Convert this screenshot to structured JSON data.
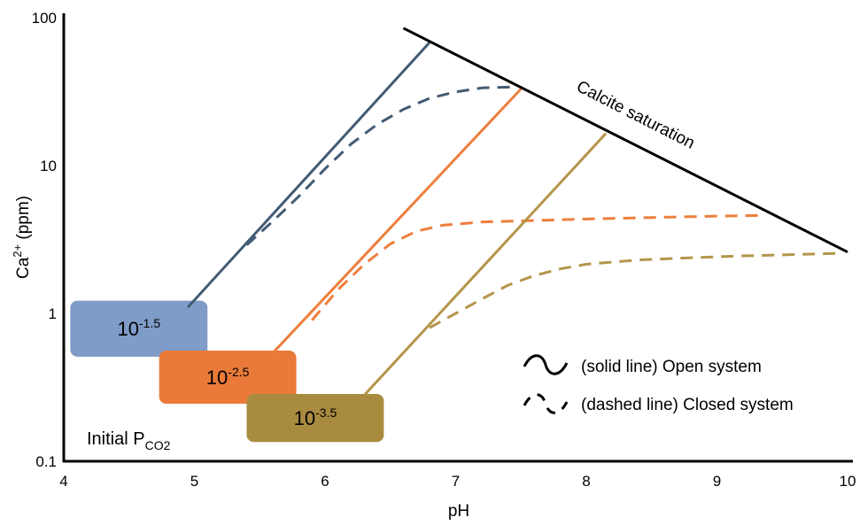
{
  "chart_data": {
    "type": "line",
    "xlabel": "pH",
    "ylabel": {
      "base": "Ca",
      "sup": "2+",
      "rest": " (ppm)"
    },
    "xlim": [
      4,
      10
    ],
    "ylim": [
      0.1,
      100
    ],
    "y_scale": "log",
    "x_ticks": [
      "4",
      "5",
      "6",
      "7",
      "8",
      "9",
      "10"
    ],
    "y_ticks": [
      "0.1",
      "1",
      "10",
      "100"
    ],
    "grid": false,
    "colors": {
      "blue": "#435B74",
      "orange": "#EE7E3C",
      "olive": "#B5954B",
      "blue_box": "#7F9BC7",
      "orange_box": "#E97A3A",
      "olive_box": "#A98B3F",
      "saturation": "#000000"
    },
    "saturation_line": {
      "label": "Calcite saturation",
      "points": [
        [
          6.6,
          85
        ],
        [
          10,
          2.6
        ]
      ]
    },
    "series": [
      {
        "style": "solid",
        "color_key": "blue",
        "points": [
          [
            4.95,
            1.1
          ],
          [
            6.8,
            68
          ]
        ]
      },
      {
        "style": "dashed",
        "color_key": "blue",
        "points": [
          [
            5.4,
            2.9
          ],
          [
            5.6,
            4.2
          ],
          [
            5.8,
            6.2
          ],
          [
            6.0,
            9.5
          ],
          [
            6.2,
            14
          ],
          [
            6.4,
            19
          ],
          [
            6.6,
            24
          ],
          [
            6.8,
            28.5
          ],
          [
            7.0,
            31.5
          ],
          [
            7.2,
            33.5
          ],
          [
            7.45,
            34
          ]
        ]
      },
      {
        "style": "solid",
        "color_key": "orange",
        "points": [
          [
            5.6,
            0.54
          ],
          [
            7.5,
            33
          ]
        ]
      },
      {
        "style": "dashed",
        "color_key": "orange",
        "points": [
          [
            5.9,
            0.9
          ],
          [
            6.1,
            1.45
          ],
          [
            6.3,
            2.15
          ],
          [
            6.5,
            2.95
          ],
          [
            6.7,
            3.6
          ],
          [
            6.9,
            3.95
          ],
          [
            7.2,
            4.15
          ],
          [
            7.6,
            4.25
          ],
          [
            8.0,
            4.35
          ],
          [
            8.5,
            4.45
          ],
          [
            9.0,
            4.55
          ],
          [
            9.35,
            4.6
          ]
        ]
      },
      {
        "style": "solid",
        "color_key": "olive",
        "points": [
          [
            6.3,
            0.28
          ],
          [
            8.15,
            16.5
          ]
        ]
      },
      {
        "style": "dashed",
        "color_key": "olive",
        "points": [
          [
            6.8,
            0.8
          ],
          [
            7.0,
            1.0
          ],
          [
            7.2,
            1.25
          ],
          [
            7.4,
            1.55
          ],
          [
            7.6,
            1.8
          ],
          [
            7.8,
            2.0
          ],
          [
            8.0,
            2.15
          ],
          [
            8.4,
            2.3
          ],
          [
            8.8,
            2.38
          ],
          [
            9.2,
            2.45
          ],
          [
            9.6,
            2.5
          ],
          [
            9.95,
            2.55
          ]
        ]
      }
    ],
    "initial_pco2": {
      "label_main": "Initial P",
      "label_sub": "CO2",
      "boxes": [
        {
          "base": "10",
          "exp": "-1.5",
          "color_key": "blue_box",
          "x": [
            4.05,
            5.1
          ],
          "y": [
            0.51,
            1.22
          ]
        },
        {
          "base": "10",
          "exp": "-2.5",
          "color_key": "orange_box",
          "x": [
            4.73,
            5.78
          ],
          "y": [
            0.245,
            0.56
          ]
        },
        {
          "base": "10",
          "exp": "-3.5",
          "color_key": "olive_box",
          "x": [
            5.4,
            6.45
          ],
          "y": [
            0.135,
            0.285
          ]
        }
      ]
    },
    "legend": {
      "placement": "bottom-right",
      "solid_label": "(solid line) Open system",
      "dashed_label": "(dashed line) Closed system"
    }
  }
}
